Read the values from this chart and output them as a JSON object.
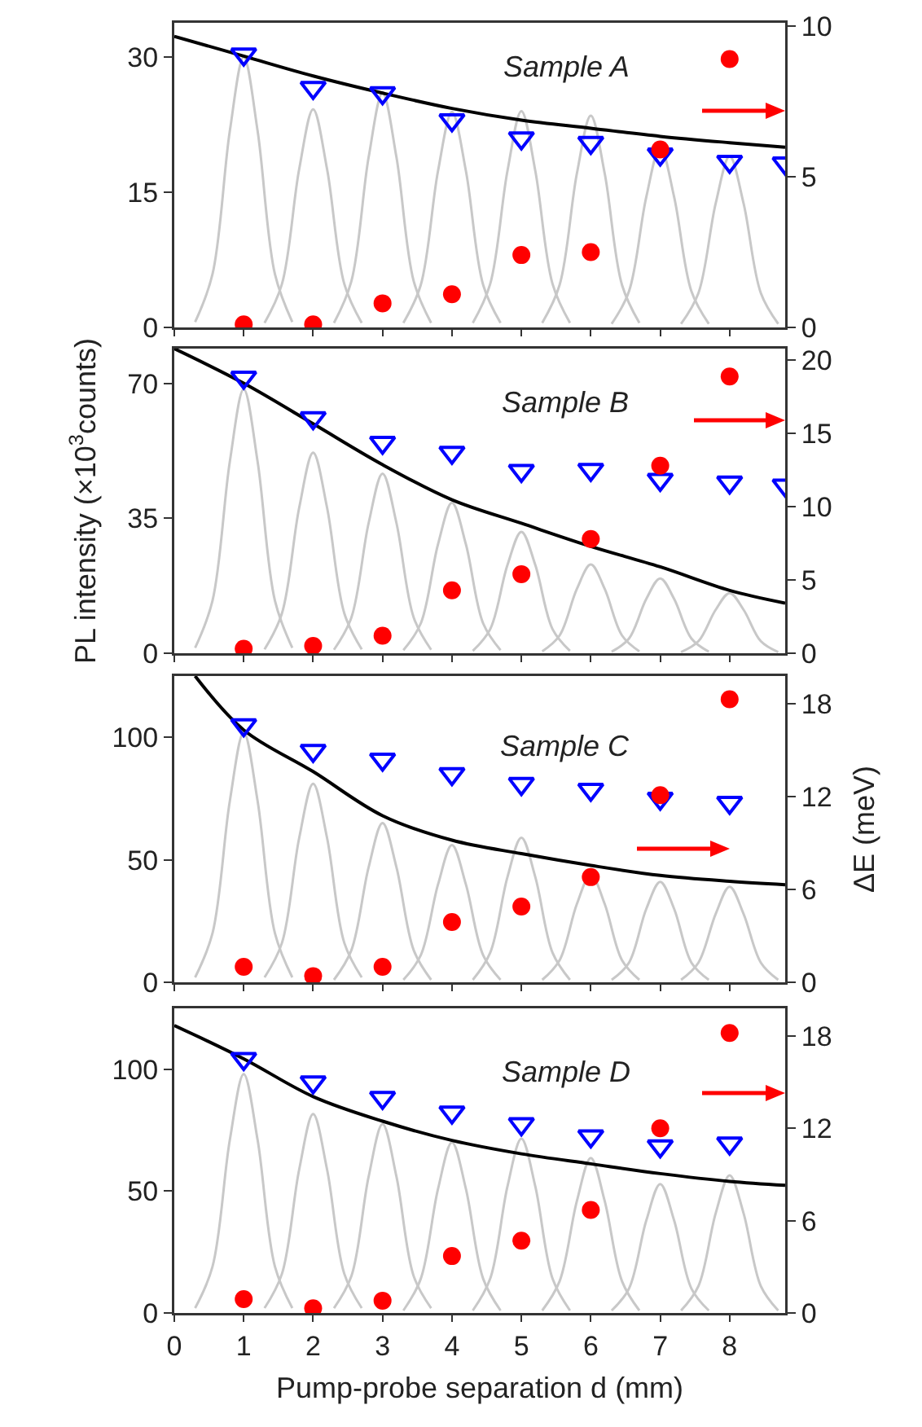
{
  "chart_data": [
    {
      "type": "scatter",
      "annotations": [
        "Sample A"
      ],
      "xlim": [
        0,
        8.8
      ],
      "xticks": [
        0,
        1,
        2,
        3,
        4,
        5,
        6,
        7,
        8
      ],
      "ylim": [
        0,
        33.8
      ],
      "yticks": [
        0,
        15,
        30
      ],
      "y2lim": [
        0,
        10.1
      ],
      "y2ticks": [
        0,
        5,
        10
      ],
      "tick_labels": "y",
      "series": [
        {
          "type": "line",
          "color": "#c8c8c8",
          "marker": "none",
          "x": [
            0.3,
            0.55,
            0.8,
            1,
            1.2,
            1.45,
            1.7
          ],
          "values": [
            0.6,
            5.9,
            21.8,
            30,
            21.8,
            5.9,
            0.6
          ]
        },
        {
          "type": "line",
          "color": "#c8c8c8",
          "marker": "none",
          "x": [
            1.3,
            1.55,
            1.8,
            2,
            2.2,
            2.45,
            2.7
          ],
          "values": [
            0.5,
            4.8,
            17.6,
            24.2,
            17.6,
            4.8,
            0.5
          ]
        },
        {
          "type": "line",
          "color": "#c8c8c8",
          "marker": "none",
          "x": [
            2.3,
            2.55,
            2.8,
            3,
            3.2,
            3.45,
            3.7
          ],
          "values": [
            0.5,
            5.1,
            18.9,
            26,
            18.9,
            5.1,
            0.5
          ]
        },
        {
          "type": "line",
          "color": "#c8c8c8",
          "marker": "none",
          "x": [
            3.3,
            3.55,
            3.8,
            4,
            4.2,
            4.45,
            4.7
          ],
          "values": [
            0.5,
            4.7,
            17.4,
            23.9,
            17.4,
            4.7,
            0.5
          ]
        },
        {
          "type": "line",
          "color": "#c8c8c8",
          "marker": "none",
          "x": [
            4.3,
            4.55,
            4.8,
            5,
            5.2,
            5.45,
            5.7
          ],
          "values": [
            0.5,
            4.8,
            17.4,
            24,
            17.4,
            4.8,
            0.5
          ]
        },
        {
          "type": "line",
          "color": "#c8c8c8",
          "marker": "none",
          "x": [
            5.3,
            5.55,
            5.8,
            6,
            6.2,
            6.45,
            6.7
          ],
          "values": [
            0.5,
            4.7,
            17.1,
            23.5,
            17.1,
            4.7,
            0.5
          ]
        },
        {
          "type": "line",
          "color": "#c8c8c8",
          "marker": "none",
          "x": [
            6.3,
            6.55,
            6.8,
            7,
            7.2,
            7.45,
            7.7
          ],
          "values": [
            0.4,
            4.0,
            14.5,
            20,
            14.5,
            4.0,
            0.4
          ]
        },
        {
          "type": "line",
          "color": "#c8c8c8",
          "marker": "none",
          "x": [
            7.3,
            7.55,
            7.8,
            8,
            8.2,
            8.45,
            8.7
          ],
          "values": [
            0.4,
            3.8,
            13.8,
            19,
            13.8,
            3.8,
            0.4
          ]
        },
        {
          "type": "line",
          "color": "#000000",
          "marker": "none",
          "x": [
            0,
            1,
            2,
            3,
            4,
            5,
            6,
            7,
            8,
            8.8
          ],
          "values": [
            32.3,
            30.1,
            27.9,
            26,
            24.3,
            23,
            22.1,
            21.2,
            20.5,
            20
          ]
        },
        {
          "color": "#0000ff",
          "marker": "triangle",
          "x": [
            1,
            2,
            3,
            4,
            5,
            6,
            7,
            8,
            8.8
          ],
          "values": [
            30.3,
            26.6,
            26,
            23,
            21,
            20.5,
            19.2,
            18.4,
            18.2
          ]
        },
        {
          "color": "#ff0000",
          "marker": "circle",
          "axis": "y2",
          "x": [
            1,
            2,
            3,
            4,
            5,
            6,
            7,
            8
          ],
          "values": [
            0.1,
            0.1,
            0.8,
            1.1,
            2.4,
            2.5,
            5.9,
            8.9
          ]
        }
      ]
    },
    {
      "type": "scatter",
      "annotations": [
        "Sample B"
      ],
      "ylabel": "PL intensity (×10$^{3}$counts)",
      "xlim": [
        0,
        8.8
      ],
      "xticks": [
        0,
        1,
        2,
        3,
        4,
        5,
        6,
        7,
        8
      ],
      "ylim": [
        0,
        79
      ],
      "yticks": [
        0,
        35,
        70
      ],
      "y2lim": [
        0,
        20.8
      ],
      "y2ticks": [
        0,
        5,
        10,
        15,
        20
      ],
      "tick_labels": "y",
      "series": [
        {
          "type": "line",
          "color": "#c8c8c8",
          "marker": "none",
          "x": [
            0.3,
            0.55,
            0.8,
            1,
            1.2,
            1.45,
            1.7
          ],
          "values": [
            1.4,
            13.6,
            49.7,
            68.5,
            49.7,
            13.6,
            1.4
          ]
        },
        {
          "type": "line",
          "color": "#c8c8c8",
          "marker": "none",
          "x": [
            1.3,
            1.55,
            1.8,
            2,
            2.2,
            2.45,
            2.7
          ],
          "values": [
            1.0,
            10.3,
            37.8,
            52,
            37.8,
            10.3,
            1.0
          ]
        },
        {
          "type": "line",
          "color": "#c8c8c8",
          "marker": "none",
          "x": [
            2.3,
            2.55,
            2.8,
            3,
            3.2,
            3.45,
            3.7
          ],
          "values": [
            0.9,
            9.2,
            33.8,
            46.6,
            33.8,
            9.2,
            0.9
          ]
        },
        {
          "type": "line",
          "color": "#c8c8c8",
          "marker": "none",
          "x": [
            3.3,
            3.55,
            3.8,
            4,
            4.2,
            4.45,
            4.7
          ],
          "values": [
            0.8,
            7.7,
            28.3,
            39,
            28.3,
            7.7,
            0.8
          ]
        },
        {
          "type": "line",
          "color": "#c8c8c8",
          "marker": "none",
          "x": [
            4.3,
            4.55,
            4.8,
            5,
            5.2,
            5.45,
            5.7
          ],
          "values": [
            0.6,
            6.2,
            22.9,
            31.5,
            22.9,
            6.2,
            0.6
          ]
        },
        {
          "type": "line",
          "color": "#c8c8c8",
          "marker": "none",
          "x": [
            5.3,
            5.55,
            5.8,
            6,
            6.2,
            6.45,
            6.7
          ],
          "values": [
            0.5,
            4.6,
            16.7,
            23,
            16.7,
            4.6,
            0.5
          ]
        },
        {
          "type": "line",
          "color": "#c8c8c8",
          "marker": "none",
          "x": [
            6.3,
            6.55,
            6.8,
            7,
            7.2,
            7.45,
            7.7
          ],
          "values": [
            0.4,
            3.8,
            14.1,
            19.4,
            14.1,
            3.8,
            0.4
          ]
        },
        {
          "type": "line",
          "color": "#c8c8c8",
          "marker": "none",
          "x": [
            7.3,
            7.55,
            7.8,
            8,
            8.2,
            8.45,
            8.7
          ],
          "values": [
            0.3,
            3.1,
            11.3,
            15.6,
            11.3,
            3.1,
            0.3
          ]
        },
        {
          "type": "line",
          "color": "#000000",
          "marker": "none",
          "x": [
            0,
            1,
            2,
            3,
            4,
            5,
            6,
            7,
            8,
            8.8
          ],
          "values": [
            79,
            70,
            59.5,
            48.9,
            39.8,
            33.7,
            27.7,
            22.4,
            16.3,
            13
          ]
        },
        {
          "color": "#0000ff",
          "marker": "triangle",
          "x": [
            1,
            2,
            3,
            4,
            5,
            6,
            7,
            8,
            8.8
          ],
          "values": [
            71.5,
            61,
            54.6,
            52,
            47.3,
            47.6,
            45,
            44.3,
            43.5
          ]
        },
        {
          "color": "#ff0000",
          "marker": "circle",
          "axis": "y2",
          "x": [
            1,
            2,
            3,
            4,
            5,
            6,
            7,
            8
          ],
          "values": [
            0.3,
            0.5,
            1.2,
            4.3,
            5.4,
            7.8,
            12.8,
            18.9
          ]
        }
      ]
    },
    {
      "type": "scatter",
      "annotations": [
        "Sample C"
      ],
      "y2label": "ΔE (meV)",
      "xlim": [
        0,
        8.8
      ],
      "xticks": [
        0,
        1,
        2,
        3,
        4,
        5,
        6,
        7,
        8
      ],
      "ylim": [
        0,
        125
      ],
      "yticks": [
        0,
        50,
        100
      ],
      "y2lim": [
        0,
        19.8
      ],
      "y2ticks": [
        0,
        6,
        12,
        18
      ],
      "tick_labels": "y",
      "series": [
        {
          "type": "line",
          "color": "#c8c8c8",
          "marker": "none",
          "x": [
            0.3,
            0.55,
            0.8,
            1,
            1.2,
            1.45,
            1.7
          ],
          "values": [
            2,
            20,
            74,
            102,
            74,
            20,
            2
          ]
        },
        {
          "type": "line",
          "color": "#c8c8c8",
          "marker": "none",
          "x": [
            1.3,
            1.55,
            1.8,
            2,
            2.2,
            2.45,
            2.7
          ],
          "values": [
            2,
            16,
            59,
            81,
            59,
            16,
            2
          ]
        },
        {
          "type": "line",
          "color": "#c8c8c8",
          "marker": "none",
          "x": [
            2.3,
            2.55,
            2.8,
            3,
            3.2,
            3.45,
            3.7
          ],
          "values": [
            1,
            13,
            47,
            65,
            47,
            13,
            1
          ]
        },
        {
          "type": "line",
          "color": "#c8c8c8",
          "marker": "none",
          "x": [
            3.3,
            3.55,
            3.8,
            4,
            4.2,
            4.45,
            4.7
          ],
          "values": [
            1,
            11,
            40,
            56,
            40,
            11,
            1
          ]
        },
        {
          "type": "line",
          "color": "#c8c8c8",
          "marker": "none",
          "x": [
            4.3,
            4.55,
            4.8,
            5,
            5.2,
            5.45,
            5.7
          ],
          "values": [
            1,
            12,
            43,
            59,
            43,
            12,
            1
          ]
        },
        {
          "type": "line",
          "color": "#c8c8c8",
          "marker": "none",
          "x": [
            5.3,
            5.55,
            5.8,
            6,
            6.2,
            6.45,
            6.7
          ],
          "values": [
            1,
            9,
            32,
            44,
            32,
            9,
            1
          ]
        },
        {
          "type": "line",
          "color": "#c8c8c8",
          "marker": "none",
          "x": [
            6.3,
            6.55,
            6.8,
            7,
            7.2,
            7.45,
            7.7
          ],
          "values": [
            1,
            8,
            30,
            41,
            30,
            8,
            1
          ]
        },
        {
          "type": "line",
          "color": "#c8c8c8",
          "marker": "none",
          "x": [
            7.3,
            7.55,
            7.8,
            8,
            8.2,
            8.45,
            8.7
          ],
          "values": [
            1,
            8,
            28,
            39,
            28,
            8,
            1
          ]
        },
        {
          "type": "line",
          "color": "#000000",
          "marker": "none",
          "x": [
            0.3,
            1,
            2,
            3,
            4,
            5,
            6,
            7,
            8,
            8.8
          ],
          "values": [
            125,
            103,
            86,
            68,
            58,
            52.5,
            47.7,
            43.6,
            41.2,
            39.8
          ]
        },
        {
          "color": "#0000ff",
          "marker": "triangle",
          "x": [
            1,
            2,
            3,
            4,
            5,
            6,
            7,
            8
          ],
          "values": [
            105,
            94.5,
            90.9,
            85,
            81,
            78.6,
            75,
            73.3
          ]
        },
        {
          "color": "#ff0000",
          "marker": "circle",
          "axis": "y2",
          "x": [
            1,
            2,
            3,
            4,
            5,
            6,
            7,
            8
          ],
          "values": [
            1,
            0.4,
            1,
            3.9,
            4.9,
            6.8,
            12.1,
            18.3
          ]
        }
      ]
    },
    {
      "type": "scatter",
      "annotations": [
        "Sample D"
      ],
      "xlabel": "Pump-probe separation d (mm)",
      "xlim": [
        0,
        8.8
      ],
      "xticks": [
        0,
        1,
        2,
        3,
        4,
        5,
        6,
        7,
        8
      ],
      "ylim": [
        0,
        125
      ],
      "yticks": [
        0,
        50,
        100
      ],
      "y2lim": [
        0,
        19.8
      ],
      "y2ticks": [
        0,
        6,
        12,
        18
      ],
      "series": [
        {
          "type": "line",
          "color": "#c8c8c8",
          "marker": "none",
          "x": [
            0.3,
            0.55,
            0.8,
            1,
            1.2,
            1.45,
            1.7
          ],
          "values": [
            2,
            19,
            71,
            98,
            71,
            19,
            2
          ]
        },
        {
          "type": "line",
          "color": "#c8c8c8",
          "marker": "none",
          "x": [
            1.3,
            1.55,
            1.8,
            2,
            2.2,
            2.45,
            2.7
          ],
          "values": [
            2,
            16,
            59,
            81.6,
            59,
            16,
            2
          ]
        },
        {
          "type": "line",
          "color": "#c8c8c8",
          "marker": "none",
          "x": [
            2.3,
            2.55,
            2.8,
            3,
            3.2,
            3.45,
            3.7
          ],
          "values": [
            2,
            15,
            56,
            77.5,
            56,
            15,
            2
          ]
        },
        {
          "type": "line",
          "color": "#c8c8c8",
          "marker": "none",
          "x": [
            3.3,
            3.55,
            3.8,
            4,
            4.2,
            4.45,
            4.7
          ],
          "values": [
            1,
            14,
            51,
            70,
            51,
            14,
            1
          ]
        },
        {
          "type": "line",
          "color": "#c8c8c8",
          "marker": "none",
          "x": [
            4.3,
            4.55,
            4.8,
            5,
            5.2,
            5.45,
            5.7
          ],
          "values": [
            1,
            14,
            52,
            71.5,
            52,
            14,
            1
          ]
        },
        {
          "type": "line",
          "color": "#c8c8c8",
          "marker": "none",
          "x": [
            5.3,
            5.55,
            5.8,
            6,
            6.2,
            6.45,
            6.7
          ],
          "values": [
            1,
            13,
            46,
            63.6,
            46,
            13,
            1
          ]
        },
        {
          "type": "line",
          "color": "#c8c8c8",
          "marker": "none",
          "x": [
            6.3,
            6.55,
            6.8,
            7,
            7.2,
            7.45,
            7.7
          ],
          "values": [
            1,
            10,
            38,
            52.9,
            38,
            10,
            1
          ]
        },
        {
          "type": "line",
          "color": "#c8c8c8",
          "marker": "none",
          "x": [
            7.3,
            7.55,
            7.8,
            8,
            8.2,
            8.45,
            8.7
          ],
          "values": [
            1,
            11,
            41,
            56.5,
            41,
            11,
            1
          ]
        },
        {
          "type": "line",
          "color": "#000000",
          "marker": "none",
          "x": [
            0,
            1,
            2,
            3,
            4,
            5,
            6,
            7,
            8,
            8.8
          ],
          "values": [
            118,
            104.3,
            88.8,
            78.7,
            70.8,
            65.3,
            61.2,
            57.2,
            54,
            52.4
          ]
        },
        {
          "color": "#0000ff",
          "marker": "triangle",
          "x": [
            1,
            2,
            3,
            4,
            5,
            6,
            7,
            8
          ],
          "values": [
            104.3,
            94.7,
            88.3,
            82.3,
            77.5,
            72.5,
            68.4,
            69.6
          ]
        },
        {
          "color": "#ff0000",
          "marker": "circle",
          "axis": "y2",
          "x": [
            1,
            2,
            3,
            4,
            5,
            6,
            7,
            8
          ],
          "values": [
            0.9,
            0.3,
            0.8,
            3.7,
            4.7,
            6.7,
            12,
            18.2
          ]
        }
      ]
    }
  ]
}
